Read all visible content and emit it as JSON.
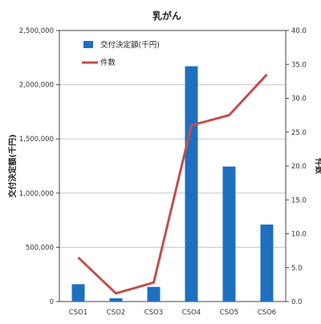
{
  "chart_data": {
    "type": "bar+line",
    "title": "乳がん",
    "categories": [
      "CSO1",
      "CSO2",
      "CSO3",
      "CSO4",
      "CSO5",
      "CSO6"
    ],
    "series": [
      {
        "name": "交付決定額(千円)",
        "type": "bar",
        "axis": "left",
        "color": "#1f6fbf",
        "values": [
          160000,
          30000,
          135000,
          2170000,
          1245000,
          710000
        ]
      },
      {
        "name": "件数",
        "type": "line",
        "axis": "right",
        "color": "#c0504d",
        "values": [
          6.5,
          1.2,
          2.8,
          26.0,
          27.5,
          33.5
        ]
      }
    ],
    "ylabel": "交付決定額(千円)",
    "y2label": "件数",
    "ylim": [
      0,
      2500000
    ],
    "y2lim": [
      0,
      40
    ],
    "yticks": [
      "0",
      "500,000",
      "1,000,000",
      "1,500,000",
      "2,000,000",
      "2,500,000"
    ],
    "y2ticks": [
      "0.0",
      "5.0",
      "10.0",
      "15.0",
      "20.0",
      "25.0",
      "30.0",
      "35.0",
      "40.0"
    ],
    "grid": true,
    "legend": "top-left"
  }
}
